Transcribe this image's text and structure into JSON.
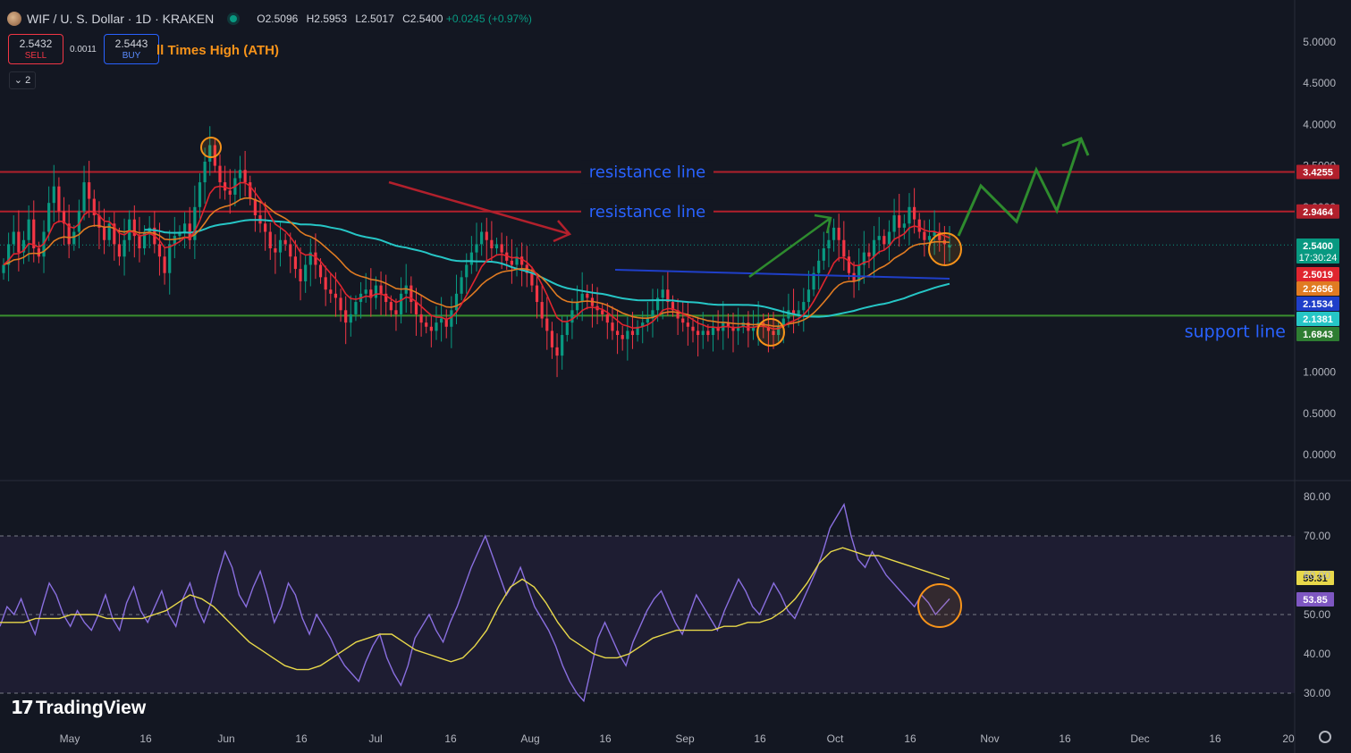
{
  "header": {
    "symbol": "WIF / U. S. Dollar · 1D · KRAKEN",
    "open": "O2.5096",
    "high": "H2.5953",
    "low": "L2.5017",
    "close": "C2.5400",
    "change": "+0.0245 (+0.97%)"
  },
  "trade": {
    "sell_price": "2.5432",
    "sell_label": "SELL",
    "spread": "0.0011",
    "buy_price": "2.5443",
    "buy_label": "BUY"
  },
  "indicator_legend": "ll Times High (ATH)",
  "collapse_count": "2",
  "brand": "TradingView",
  "colors": {
    "bg": "#131722",
    "up": "#089981",
    "down": "#f23645",
    "resistance": "#b2202c",
    "support": "#3a8f2f",
    "ma_red": "#e0252f",
    "ma_orange": "#e07b22",
    "ma_teal": "#26c6c6",
    "ma_blue": "#1f3fc9",
    "rsi": "#8a6fe0",
    "rsi_ma": "#e8d84a",
    "annotation_blue": "#2962ff"
  },
  "chart_data": [
    {
      "type": "candlestick",
      "title": "",
      "x_ticks": [
        "May",
        "16",
        "Jun",
        "16",
        "Jul",
        "16",
        "Aug",
        "16",
        "Sep",
        "16",
        "Oct",
        "16",
        "Nov",
        "16",
        "Dec",
        "16",
        "20"
      ],
      "y_ticks": [
        "5.0000",
        "4.5000",
        "4.0000",
        "3.5000",
        "3.0000",
        "2.5000",
        "2.0000",
        "1.5000",
        "1.0000",
        "0.5000",
        "0.0000"
      ],
      "ylim": [
        0,
        5.4
      ],
      "last_price": 2.54,
      "candles_close": [
        2.3,
        2.55,
        2.7,
        2.45,
        2.6,
        2.85,
        2.5,
        2.4,
        2.7,
        3.05,
        3.25,
        2.95,
        2.8,
        2.55,
        2.7,
        2.95,
        3.3,
        3.1,
        2.9,
        2.75,
        2.6,
        2.8,
        2.55,
        2.4,
        2.6,
        2.85,
        2.65,
        2.5,
        2.7,
        2.75,
        2.55,
        2.4,
        2.2,
        2.55,
        2.65,
        2.7,
        2.8,
        2.6,
        3.0,
        3.3,
        3.55,
        3.75,
        3.5,
        3.3,
        3.2,
        3.15,
        3.35,
        3.45,
        3.3,
        3.1,
        2.9,
        2.8,
        2.7,
        2.5,
        2.45,
        2.6,
        2.55,
        2.4,
        2.25,
        2.1,
        2.3,
        2.45,
        2.3,
        2.15,
        2.0,
        1.95,
        1.9,
        1.75,
        1.6,
        1.7,
        1.85,
        1.95,
        2.0,
        1.9,
        2.05,
        1.95,
        1.85,
        1.75,
        1.7,
        1.95,
        2.05,
        1.85,
        1.7,
        1.6,
        1.55,
        1.5,
        1.6,
        1.65,
        1.55,
        1.75,
        1.95,
        2.15,
        2.3,
        2.45,
        2.55,
        2.7,
        2.6,
        2.5,
        2.55,
        2.45,
        2.35,
        2.3,
        2.4,
        2.3,
        2.2,
        2.05,
        1.85,
        1.65,
        1.5,
        1.3,
        1.2,
        1.45,
        1.6,
        1.75,
        1.85,
        1.95,
        1.9,
        1.8,
        1.75,
        1.7,
        1.6,
        1.5,
        1.45,
        1.4,
        1.5,
        1.45,
        1.55,
        1.6,
        1.65,
        1.75,
        1.9,
        2.0,
        1.85,
        1.75,
        1.65,
        1.6,
        1.55,
        1.5,
        1.45,
        1.5,
        1.45,
        1.55,
        1.5,
        1.6,
        1.55,
        1.5,
        1.55,
        1.6,
        1.5,
        1.55,
        1.6,
        1.55,
        1.5,
        1.45,
        1.55,
        1.65,
        1.75,
        1.7,
        1.75,
        1.85,
        2.0,
        2.2,
        2.35,
        2.5,
        2.6,
        2.75,
        2.6,
        2.4,
        2.2,
        2.1,
        2.3,
        2.45,
        2.4,
        2.6,
        2.65,
        2.55,
        2.7,
        2.9,
        2.75,
        2.8,
        3.0,
        2.85,
        2.7,
        2.6,
        2.65,
        2.7,
        2.6,
        2.55,
        2.54
      ],
      "candles_open": [
        2.2,
        2.3,
        2.55,
        2.7,
        2.45,
        2.6,
        2.85,
        2.5,
        2.4,
        2.7,
        3.05,
        3.25,
        2.95,
        2.8,
        2.55,
        2.7,
        2.95,
        3.3,
        3.1,
        2.9,
        2.75,
        2.6,
        2.8,
        2.55,
        2.4,
        2.6,
        2.85,
        2.65,
        2.5,
        2.7,
        2.75,
        2.55,
        2.4,
        2.2,
        2.55,
        2.65,
        2.7,
        2.8,
        2.6,
        3.0,
        3.3,
        3.55,
        3.75,
        3.5,
        3.3,
        3.2,
        3.15,
        3.35,
        3.45,
        3.3,
        3.1,
        2.9,
        2.8,
        2.7,
        2.5,
        2.45,
        2.6,
        2.55,
        2.4,
        2.25,
        2.1,
        2.3,
        2.45,
        2.3,
        2.15,
        2.0,
        1.95,
        1.9,
        1.75,
        1.6,
        1.7,
        1.85,
        1.95,
        2.0,
        1.9,
        2.05,
        1.95,
        1.85,
        1.75,
        1.7,
        1.95,
        2.05,
        1.85,
        1.7,
        1.6,
        1.55,
        1.5,
        1.6,
        1.65,
        1.55,
        1.75,
        1.95,
        2.15,
        2.3,
        2.45,
        2.55,
        2.7,
        2.6,
        2.5,
        2.55,
        2.45,
        2.35,
        2.3,
        2.4,
        2.3,
        2.2,
        2.05,
        1.85,
        1.65,
        1.5,
        1.3,
        1.2,
        1.45,
        1.6,
        1.75,
        1.85,
        1.95,
        1.9,
        1.8,
        1.75,
        1.7,
        1.6,
        1.5,
        1.45,
        1.4,
        1.5,
        1.45,
        1.55,
        1.6,
        1.65,
        1.75,
        1.9,
        2.0,
        1.85,
        1.75,
        1.65,
        1.6,
        1.55,
        1.5,
        1.45,
        1.5,
        1.45,
        1.55,
        1.5,
        1.6,
        1.55,
        1.5,
        1.55,
        1.6,
        1.5,
        1.55,
        1.6,
        1.55,
        1.5,
        1.45,
        1.55,
        1.65,
        1.75,
        1.7,
        1.75,
        1.85,
        2.0,
        2.2,
        2.35,
        2.5,
        2.6,
        2.75,
        2.6,
        2.4,
        2.2,
        2.1,
        2.3,
        2.45,
        2.4,
        2.6,
        2.65,
        2.55,
        2.7,
        2.9,
        2.75,
        2.8,
        3.0,
        2.85,
        2.7,
        2.6,
        2.65,
        2.7,
        2.6,
        2.51
      ],
      "levels": [
        {
          "label": "resistance line",
          "value": 3.4255,
          "price_label": "3.4255"
        },
        {
          "label": "resistance line",
          "value": 2.9464,
          "price_label": "2.9464"
        },
        {
          "label": "support line",
          "value": 1.6843,
          "price_label": "1.6843"
        }
      ],
      "price_tags": [
        {
          "value": 2.54,
          "text": "2.5400",
          "sub": "17:30:24",
          "color": "#089981"
        },
        {
          "value": 2.5019,
          "text": "2.5019",
          "color": "#e0252f"
        },
        {
          "value": 2.2656,
          "text": "2.2656",
          "color": "#e07b22"
        },
        {
          "value": 2.1534,
          "text": "2.1534",
          "color": "#1f3fc9"
        },
        {
          "value": 2.1381,
          "text": "2.1381",
          "color": "#26c6c6"
        },
        {
          "value": 1.6843,
          "text": "1.6843",
          "color": "#2e7d32"
        }
      ]
    },
    {
      "type": "line",
      "title": "",
      "y_ticks": [
        "80.00",
        "70.00",
        "60.00",
        "50.00",
        "40.00",
        "30.00"
      ],
      "ylim": [
        27,
        83
      ],
      "band": [
        30,
        70
      ],
      "midline": 50,
      "series": [
        {
          "values": [
            47,
            52,
            50,
            54,
            49,
            45,
            52,
            58,
            55,
            50,
            47,
            51,
            48,
            46,
            50,
            55,
            49,
            46,
            53,
            57,
            51,
            48,
            52,
            56,
            50,
            47,
            54,
            58,
            52,
            48,
            53,
            60,
            66,
            62,
            55,
            52,
            57,
            61,
            55,
            48,
            52,
            58,
            55,
            49,
            45,
            50,
            47,
            44,
            40,
            37,
            35,
            33,
            38,
            42,
            45,
            39,
            35,
            32,
            37,
            44,
            47,
            50,
            46,
            43,
            48,
            52,
            57,
            62,
            66,
            70,
            65,
            60,
            55,
            58,
            62,
            57,
            52,
            49,
            46,
            42,
            37,
            33,
            30,
            28,
            36,
            44,
            48,
            44,
            40,
            37,
            43,
            47,
            51,
            54,
            56,
            52,
            48,
            45,
            50,
            55,
            52,
            49,
            46,
            51,
            55,
            59,
            56,
            52,
            50,
            54,
            58,
            55,
            51,
            49,
            53,
            57,
            61,
            66,
            72,
            75,
            78,
            70,
            64,
            62,
            66,
            63,
            60,
            58,
            56,
            54,
            52,
            55,
            53,
            50,
            52,
            54
          ]
        },
        {
          "values": [
            48,
            48,
            48,
            49,
            49,
            49,
            50,
            50,
            50,
            49,
            49,
            49,
            49,
            50,
            51,
            53,
            55,
            54,
            52,
            49,
            46,
            43,
            41,
            39,
            37,
            36,
            36,
            37,
            39,
            41,
            43,
            44,
            45,
            45,
            43,
            41,
            40,
            39,
            38,
            39,
            42,
            46,
            52,
            57,
            59,
            57,
            53,
            48,
            44,
            42,
            40,
            39,
            39,
            40,
            42,
            44,
            45,
            46,
            46,
            46,
            46,
            47,
            47,
            48,
            48,
            49,
            51,
            54,
            58,
            63,
            66,
            67,
            66,
            65,
            65,
            64,
            63,
            62,
            61,
            60,
            59
          ]
        }
      ]
    }
  ]
}
